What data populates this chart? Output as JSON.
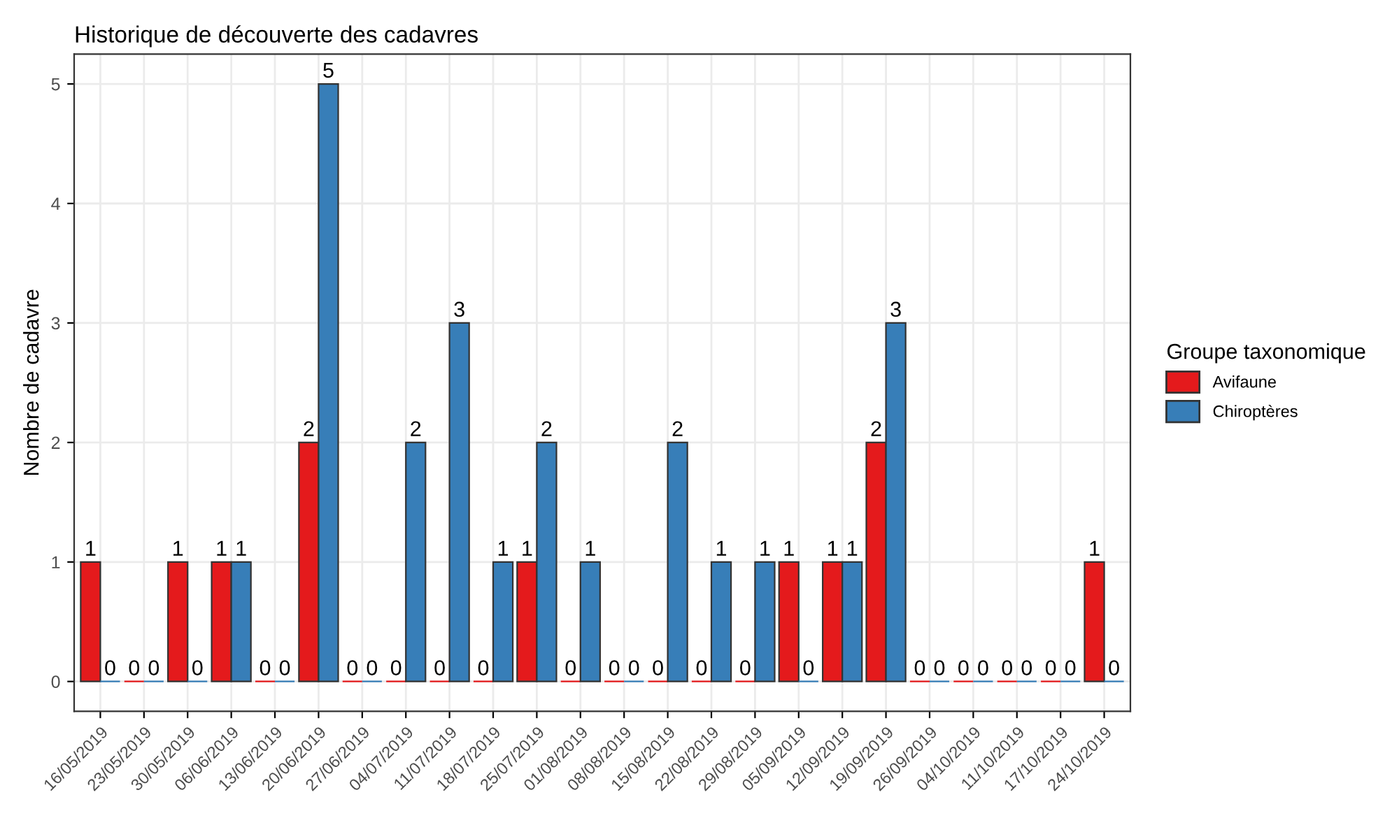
{
  "chart_data": {
    "type": "bar",
    "title": "Historique de découverte des cadavres",
    "ylabel": "Nombre de cadavre",
    "legend_title": "Groupe taxonomique",
    "categories": [
      "16/05/2019",
      "23/05/2019",
      "30/05/2019",
      "06/06/2019",
      "13/06/2019",
      "20/06/2019",
      "27/06/2019",
      "04/07/2019",
      "11/07/2019",
      "18/07/2019",
      "25/07/2019",
      "01/08/2019",
      "08/08/2019",
      "15/08/2019",
      "22/08/2019",
      "29/08/2019",
      "05/09/2019",
      "12/09/2019",
      "19/09/2019",
      "26/09/2019",
      "04/10/2019",
      "11/10/2019",
      "17/10/2019",
      "24/10/2019"
    ],
    "series": [
      {
        "name": "Avifaune",
        "color": "#e41a1c",
        "values": [
          1,
          0,
          1,
          1,
          0,
          2,
          0,
          0,
          0,
          0,
          1,
          0,
          0,
          0,
          0,
          0,
          1,
          1,
          2,
          0,
          0,
          0,
          0,
          1
        ]
      },
      {
        "name": "Chiroptères",
        "color": "#377eb8",
        "values": [
          0,
          0,
          0,
          1,
          0,
          5,
          0,
          2,
          3,
          1,
          2,
          1,
          0,
          2,
          1,
          1,
          0,
          1,
          3,
          0,
          0,
          0,
          0,
          0
        ]
      }
    ],
    "ylim": [
      -0.25,
      5.25
    ],
    "yticks": [
      0,
      1,
      2,
      3,
      4,
      5
    ],
    "grid": true,
    "legend": "right",
    "data_labels": true
  }
}
